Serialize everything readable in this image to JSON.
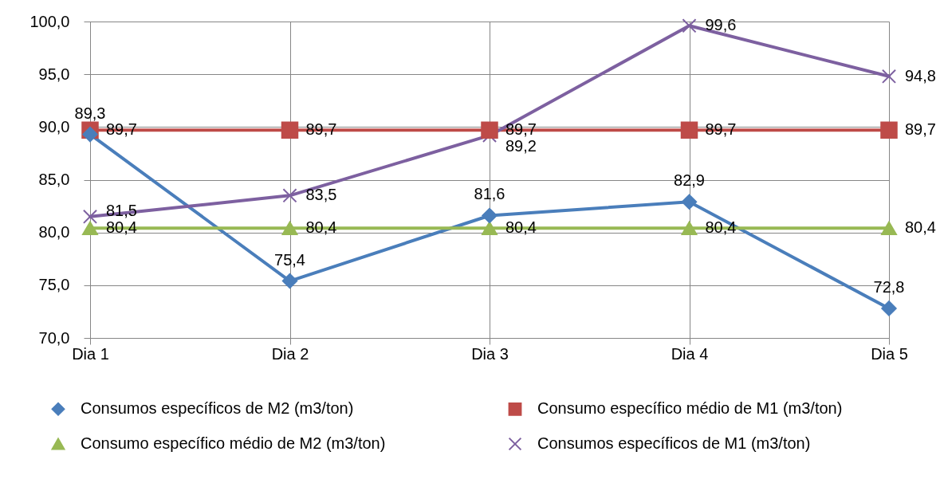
{
  "chart_data": {
    "type": "line",
    "categories": [
      "Dia 1",
      "Dia 2",
      "Dia 3",
      "Dia 4",
      "Dia 5"
    ],
    "series": [
      {
        "name": "Consumos específicos de M2 (m3/ton)",
        "color": "#4a7ebb",
        "marker": "diamond",
        "values": [
          89.3,
          75.4,
          81.6,
          82.9,
          72.8
        ],
        "value_labels": [
          "89,3",
          "75,4",
          "81,6",
          "82,9",
          "72,8"
        ]
      },
      {
        "name": "Consumo específico médio de M1 (m3/ton)",
        "color": "#be4b48",
        "marker": "square",
        "values": [
          89.7,
          89.7,
          89.7,
          89.7,
          89.7
        ],
        "value_labels": [
          "89,7",
          "89,7",
          "89,7",
          "89,7",
          "89,7"
        ]
      },
      {
        "name": "Consumo específico médio de M2 (m3/ton)",
        "color": "#98b954",
        "marker": "triangle",
        "values": [
          80.4,
          80.4,
          80.4,
          80.4,
          80.4
        ],
        "value_labels": [
          "80,4",
          "80,4",
          "80,4",
          "80,4",
          "80,4"
        ]
      },
      {
        "name": "Consumos específicos de M1 (m3/ton)",
        "color": "#7d60a0",
        "marker": "cross",
        "values": [
          81.5,
          83.5,
          89.2,
          99.6,
          94.8
        ],
        "value_labels": [
          "81,5",
          "83,5",
          "89,2",
          "99,6",
          "94,8"
        ]
      }
    ],
    "ylim": [
      70,
      100
    ],
    "yticks": [
      {
        "value": 70,
        "label": "70,0"
      },
      {
        "value": 75,
        "label": "75,0"
      },
      {
        "value": 80,
        "label": "80,0"
      },
      {
        "value": 85,
        "label": "85,0"
      },
      {
        "value": 90,
        "label": "90,0"
      },
      {
        "value": 95,
        "label": "95,0"
      },
      {
        "value": 100,
        "label": "100,0"
      }
    ],
    "grid": true,
    "legend": "bottom"
  }
}
